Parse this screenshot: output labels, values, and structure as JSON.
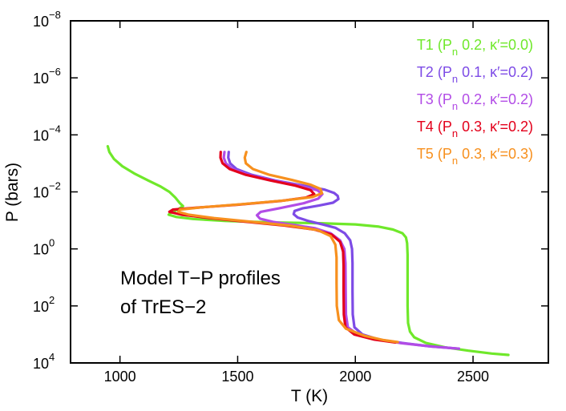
{
  "chart_data": {
    "type": "line",
    "title": "",
    "xlabel": "T (K)",
    "ylabel": "P (bars)",
    "xlim": [
      790,
      2820
    ],
    "ylim_log10": [
      -8,
      4
    ],
    "y_axis_inverted": true,
    "y_scale": "log",
    "x_ticks": [
      1000,
      1500,
      2000,
      2500
    ],
    "x_tick_labels": [
      "1000",
      "1500",
      "2000",
      "2500"
    ],
    "y_ticks_log10": [
      -8,
      -6,
      -4,
      -2,
      0,
      2,
      4
    ],
    "y_tick_labels": [
      {
        "base": "10",
        "exp": "−8"
      },
      {
        "base": "10",
        "exp": "−6"
      },
      {
        "base": "10",
        "exp": "−4"
      },
      {
        "base": "10",
        "exp": "−2"
      },
      {
        "base": "10",
        "exp": "0"
      },
      {
        "base": "10",
        "exp": "2"
      },
      {
        "base": "10",
        "exp": "4"
      }
    ],
    "annotation_lines": [
      "Model T−P profiles",
      "of TrES−2"
    ],
    "legend_position": "top-right",
    "series": [
      {
        "name": "T1",
        "legend": {
          "label": "T1 (P",
          "sub": "n",
          "rest": " 0.2, κ′=0.0)"
        },
        "color": "#6fe82a",
        "points": [
          [
            948,
            -3.6
          ],
          [
            955,
            -3.4
          ],
          [
            975,
            -3.15
          ],
          [
            1010,
            -2.9
          ],
          [
            1060,
            -2.65
          ],
          [
            1120,
            -2.4
          ],
          [
            1170,
            -2.2
          ],
          [
            1210,
            -2.0
          ],
          [
            1235,
            -1.8
          ],
          [
            1255,
            -1.6
          ],
          [
            1268,
            -1.5
          ],
          [
            1245,
            -1.38
          ],
          [
            1215,
            -1.27
          ],
          [
            1207,
            -1.2
          ],
          [
            1240,
            -1.12
          ],
          [
            1310,
            -1.05
          ],
          [
            1450,
            -0.98
          ],
          [
            1650,
            -0.93
          ],
          [
            1850,
            -0.9
          ],
          [
            2000,
            -0.86
          ],
          [
            2100,
            -0.78
          ],
          [
            2160,
            -0.68
          ],
          [
            2200,
            -0.55
          ],
          [
            2215,
            -0.4
          ],
          [
            2220,
            -0.2
          ],
          [
            2222,
            0.2
          ],
          [
            2222,
            1.0
          ],
          [
            2222,
            2.0
          ],
          [
            2224,
            2.6
          ],
          [
            2232,
            2.9
          ],
          [
            2250,
            3.1
          ],
          [
            2300,
            3.3
          ],
          [
            2380,
            3.45
          ],
          [
            2480,
            3.57
          ],
          [
            2580,
            3.67
          ],
          [
            2650,
            3.72
          ]
        ]
      },
      {
        "name": "T2",
        "legend": {
          "label": "T2 (P",
          "sub": "n",
          "rest": " 0.1, κ′=0.2)"
        },
        "color": "#7d4be6",
        "points": [
          [
            1462,
            -3.4
          ],
          [
            1460,
            -3.2
          ],
          [
            1468,
            -3.0
          ],
          [
            1495,
            -2.8
          ],
          [
            1560,
            -2.6
          ],
          [
            1660,
            -2.4
          ],
          [
            1780,
            -2.22
          ],
          [
            1870,
            -2.08
          ],
          [
            1910,
            -1.96
          ],
          [
            1925,
            -1.86
          ],
          [
            1928,
            -1.75
          ],
          [
            1905,
            -1.62
          ],
          [
            1845,
            -1.52
          ],
          [
            1775,
            -1.42
          ],
          [
            1742,
            -1.33
          ],
          [
            1738,
            -1.22
          ],
          [
            1755,
            -1.1
          ],
          [
            1800,
            -0.98
          ],
          [
            1860,
            -0.86
          ],
          [
            1915,
            -0.74
          ],
          [
            1955,
            -0.55
          ],
          [
            1978,
            -0.3
          ],
          [
            1986,
            0.0
          ],
          [
            1988,
            0.5
          ],
          [
            1988,
            1.5
          ],
          [
            1989,
            2.3
          ],
          [
            1996,
            2.75
          ],
          [
            2030,
            3.0
          ],
          [
            2100,
            3.18
          ],
          [
            2200,
            3.3
          ],
          [
            2320,
            3.42
          ],
          [
            2440,
            3.5
          ]
        ]
      },
      {
        "name": "T3",
        "legend": {
          "label": "T3 (P",
          "sub": "n",
          "rest": " 0.2, κ′=0.2)"
        },
        "color": "#b24ce6",
        "points": [
          [
            1444,
            -3.4
          ],
          [
            1441,
            -3.2
          ],
          [
            1450,
            -3.0
          ],
          [
            1478,
            -2.8
          ],
          [
            1545,
            -2.6
          ],
          [
            1650,
            -2.4
          ],
          [
            1760,
            -2.22
          ],
          [
            1838,
            -2.06
          ],
          [
            1860,
            -1.92
          ],
          [
            1842,
            -1.76
          ],
          [
            1780,
            -1.6
          ],
          [
            1675,
            -1.42
          ],
          [
            1598,
            -1.3
          ],
          [
            1582,
            -1.18
          ],
          [
            1595,
            -1.06
          ],
          [
            1650,
            -0.95
          ],
          [
            1740,
            -0.84
          ],
          [
            1830,
            -0.72
          ],
          [
            1895,
            -0.55
          ],
          [
            1935,
            -0.3
          ],
          [
            1953,
            0.0
          ],
          [
            1958,
            0.5
          ],
          [
            1959,
            1.5
          ],
          [
            1960,
            2.3
          ],
          [
            1968,
            2.75
          ],
          [
            2010,
            3.0
          ],
          [
            2090,
            3.18
          ],
          [
            2190,
            3.3
          ],
          [
            2320,
            3.42
          ],
          [
            2440,
            3.5
          ]
        ]
      },
      {
        "name": "T4",
        "legend": {
          "label": "T4 (P",
          "sub": "n",
          "rest": " 0.3, κ′=0.2)"
        },
        "color": "#e3001b",
        "points": [
          [
            1428,
            -3.4
          ],
          [
            1427,
            -3.2
          ],
          [
            1436,
            -3.0
          ],
          [
            1466,
            -2.8
          ],
          [
            1535,
            -2.6
          ],
          [
            1640,
            -2.4
          ],
          [
            1745,
            -2.22
          ],
          [
            1810,
            -2.06
          ],
          [
            1825,
            -1.92
          ],
          [
            1790,
            -1.8
          ],
          [
            1680,
            -1.68
          ],
          [
            1500,
            -1.55
          ],
          [
            1330,
            -1.45
          ],
          [
            1225,
            -1.38
          ],
          [
            1210,
            -1.3
          ],
          [
            1262,
            -1.2
          ],
          [
            1380,
            -1.08
          ],
          [
            1540,
            -0.95
          ],
          [
            1700,
            -0.82
          ],
          [
            1825,
            -0.68
          ],
          [
            1900,
            -0.5
          ],
          [
            1935,
            -0.25
          ],
          [
            1948,
            0.1
          ],
          [
            1950,
            0.6
          ],
          [
            1950,
            1.5
          ],
          [
            1951,
            2.3
          ],
          [
            1958,
            2.75
          ],
          [
            1995,
            3.0
          ],
          [
            2080,
            3.18
          ],
          [
            2170,
            3.28
          ]
        ]
      },
      {
        "name": "T5",
        "legend": {
          "label": "T5 (P",
          "sub": "n",
          "rest": " 0.3, κ′=0.3)"
        },
        "color": "#f7901e",
        "points": [
          [
            1537,
            -3.4
          ],
          [
            1530,
            -3.2
          ],
          [
            1535,
            -3.0
          ],
          [
            1565,
            -2.8
          ],
          [
            1635,
            -2.6
          ],
          [
            1730,
            -2.42
          ],
          [
            1810,
            -2.25
          ],
          [
            1852,
            -2.1
          ],
          [
            1858,
            -1.95
          ],
          [
            1818,
            -1.82
          ],
          [
            1700,
            -1.7
          ],
          [
            1520,
            -1.57
          ],
          [
            1350,
            -1.46
          ],
          [
            1255,
            -1.38
          ],
          [
            1248,
            -1.3
          ],
          [
            1292,
            -1.2
          ],
          [
            1400,
            -1.08
          ],
          [
            1560,
            -0.95
          ],
          [
            1720,
            -0.82
          ],
          [
            1840,
            -0.66
          ],
          [
            1895,
            -0.45
          ],
          [
            1915,
            -0.15
          ],
          [
            1920,
            0.3
          ],
          [
            1920,
            1.2
          ],
          [
            1921,
            2.0
          ],
          [
            1930,
            2.5
          ],
          [
            1960,
            2.8
          ],
          [
            2040,
            3.05
          ],
          [
            2120,
            3.2
          ],
          [
            2180,
            3.27
          ]
        ]
      }
    ]
  }
}
